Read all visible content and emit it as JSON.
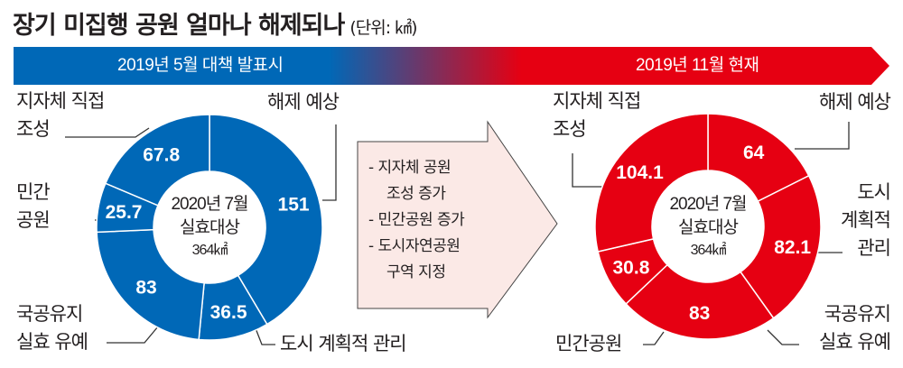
{
  "title": "장기 미집행 공원 얼마나 해제되나",
  "unit": "(단위: ㎢)",
  "colors": {
    "before": "#0068b7",
    "after": "#e60012",
    "box": "#fbe9e6"
  },
  "band": {
    "before": "2019년 5월 대책 발표시",
    "after": "2019년 11월 현재"
  },
  "center": {
    "line1": "2020년 7월",
    "line2": "실효대상",
    "line3": "364㎢"
  },
  "box": {
    "items": [
      "- 지자체 공원",
      "조성 증가",
      "- 민간공원 증가",
      "- 도시자연공원",
      "구역 지정"
    ]
  },
  "labels": {
    "before": {
      "direct1": "지자체 직접",
      "direct2": "조성",
      "private1": "민간",
      "private2": "공원",
      "state1": "국공유지",
      "state2": "실효 유예",
      "release": "해제 예상",
      "urban": "도시 계획적 관리"
    },
    "after": {
      "direct1": "지자체 직접",
      "direct2": "조성",
      "private": "민간공원",
      "state1": "국공유지",
      "state2": "실효 유예",
      "release": "해제 예상",
      "urban1": "도시",
      "urban2": "계획적",
      "urban3": "관리"
    }
  },
  "chart_data": [
    {
      "type": "pie",
      "title": "2019년 5월 대책 발표시",
      "total": 364,
      "unit": "㎢",
      "categories": [
        "해제 예상",
        "도시 계획적 관리",
        "국공유지 실효 유예",
        "민간공원",
        "지자체 직접 조성"
      ],
      "values": [
        151,
        36.5,
        83,
        25.7,
        67.8
      ]
    },
    {
      "type": "pie",
      "title": "2019년 11월 현재",
      "total": 364,
      "unit": "㎢",
      "categories": [
        "해제 예상",
        "도시 계획적 관리",
        "국공유지 실효 유예",
        "민간공원",
        "지자체 직접 조성"
      ],
      "values": [
        64,
        82.1,
        83,
        30.8,
        104.1
      ]
    }
  ]
}
